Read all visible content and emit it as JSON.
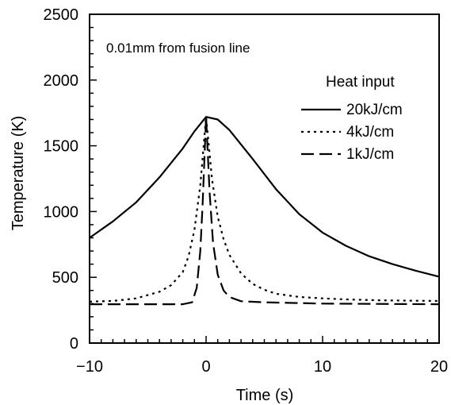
{
  "chart_data": {
    "type": "line",
    "xlabel": "Time (s)",
    "ylabel": "Temperature (K)",
    "xlim": [
      -10,
      20
    ],
    "ylim": [
      0,
      2500
    ],
    "xticks": [
      -10,
      0,
      10,
      20
    ],
    "xtick_labels": [
      "−10",
      "0",
      "10",
      "20"
    ],
    "yticks": [
      0,
      500,
      1000,
      1500,
      2000,
      2500
    ],
    "ytick_labels": [
      "0",
      "500",
      "1000",
      "1500",
      "2000",
      "2500"
    ],
    "annotation": "0.01mm from fusion line",
    "legend_title": "Heat input",
    "legend_position": "right",
    "grid": false,
    "series": [
      {
        "name": "20kJ/cm",
        "style": "solid",
        "color": "#000000",
        "x": [
          -10,
          -8,
          -6,
          -4,
          -2,
          -1,
          0,
          1,
          2,
          4,
          6,
          8,
          10,
          12,
          14,
          16,
          18,
          20
        ],
        "y": [
          800,
          925,
          1070,
          1260,
          1480,
          1610,
          1720,
          1700,
          1620,
          1400,
          1170,
          980,
          840,
          740,
          660,
          600,
          550,
          505
        ]
      },
      {
        "name": "4kJ/cm",
        "style": "dotted",
        "color": "#000000",
        "x": [
          -10,
          -8,
          -6,
          -4,
          -3,
          -2,
          -1.5,
          -1,
          -0.5,
          0,
          0.5,
          1,
          1.5,
          2,
          3,
          4,
          5,
          6,
          8,
          10,
          12,
          15,
          20
        ],
        "y": [
          315,
          320,
          340,
          390,
          440,
          540,
          660,
          860,
          1200,
          1720,
          1250,
          960,
          790,
          670,
          530,
          450,
          405,
          375,
          350,
          340,
          332,
          325,
          320
        ]
      },
      {
        "name": "1kJ/cm",
        "style": "dashed",
        "color": "#000000",
        "x": [
          -10,
          -4,
          -2,
          -1.2,
          -0.8,
          -0.5,
          -0.3,
          0,
          0.3,
          0.6,
          1,
          1.5,
          2,
          3,
          5,
          10,
          20
        ],
        "y": [
          295,
          295,
          295,
          310,
          420,
          700,
          1050,
          1720,
          1150,
          760,
          520,
          400,
          350,
          318,
          310,
          300,
          295
        ]
      }
    ]
  }
}
